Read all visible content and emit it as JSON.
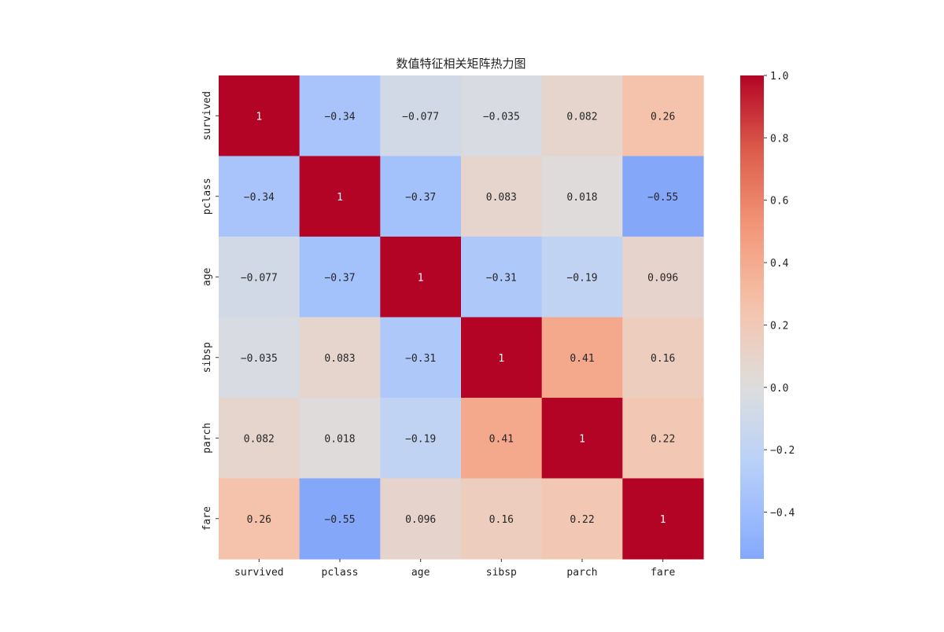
{
  "chart_data": {
    "type": "heatmap",
    "title": "数值特征相关矩阵热力图",
    "row_labels": [
      "survived",
      "pclass",
      "age",
      "sibsp",
      "parch",
      "fare"
    ],
    "col_labels": [
      "survived",
      "pclass",
      "age",
      "sibsp",
      "parch",
      "fare"
    ],
    "values": [
      [
        1,
        -0.34,
        -0.077,
        -0.035,
        0.082,
        0.26
      ],
      [
        -0.34,
        1,
        -0.37,
        0.083,
        0.018,
        -0.55
      ],
      [
        -0.077,
        -0.37,
        1,
        -0.31,
        -0.19,
        0.096
      ],
      [
        -0.035,
        0.083,
        -0.31,
        1,
        0.41,
        0.16
      ],
      [
        0.082,
        0.018,
        -0.19,
        0.41,
        1,
        0.22
      ],
      [
        0.26,
        -0.55,
        0.096,
        0.16,
        0.22,
        1
      ]
    ],
    "annotations": [
      [
        "1",
        "−0.34",
        "−0.077",
        "−0.035",
        "0.082",
        "0.26"
      ],
      [
        "−0.34",
        "1",
        "−0.37",
        "0.083",
        "0.018",
        "−0.55"
      ],
      [
        "−0.077",
        "−0.37",
        "1",
        "−0.31",
        "−0.19",
        "0.096"
      ],
      [
        "−0.035",
        "0.083",
        "−0.31",
        "1",
        "0.41",
        "0.16"
      ],
      [
        "0.082",
        "0.018",
        "−0.19",
        "0.41",
        "1",
        "0.22"
      ],
      [
        "0.26",
        "−0.55",
        "0.096",
        "0.16",
        "0.22",
        "1"
      ]
    ],
    "colormap": "coolwarm",
    "colorbar": {
      "vmin": -0.55,
      "vmax": 1.0,
      "center": 0,
      "ticks": [
        1.0,
        0.8,
        0.6,
        0.4,
        0.2,
        0.0,
        -0.2,
        -0.4
      ],
      "tick_labels": [
        "1.0",
        "0.8",
        "0.6",
        "0.4",
        "0.2",
        "0.0",
        "−0.2",
        "−0.4"
      ]
    }
  }
}
